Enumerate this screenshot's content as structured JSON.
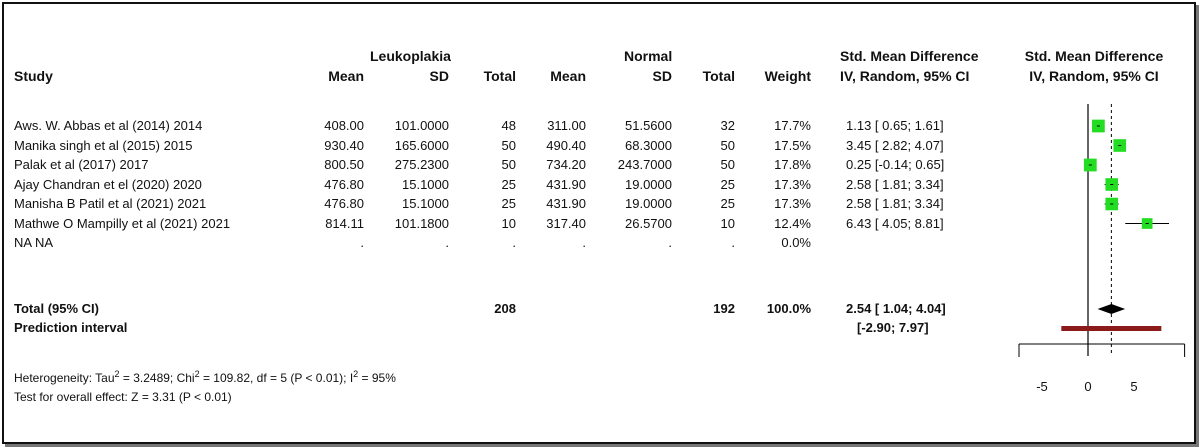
{
  "header": {
    "study": "Study",
    "group1": "Leukoplakia",
    "group2": "Normal",
    "mean": "Mean",
    "sd": "SD",
    "total": "Total",
    "weight": "Weight",
    "effect_line1": "Std. Mean Difference",
    "effect_line2": "IV, Random, 95% CI",
    "plot_line1": "Std. Mean Difference",
    "plot_line2": "IV, Random, 95% CI"
  },
  "rows": [
    {
      "study": "Aws. W. Abbas et al (2014) 2014",
      "m1": "408.00",
      "sd1": "101.0000",
      "n1": "48",
      "m2": "311.00",
      "sd2": "51.5600",
      "n2": "32",
      "weight": "17.7%",
      "ci": "1.13 [ 0.65; 1.61]"
    },
    {
      "study": "Manika singh et al (2015) 2015",
      "m1": "930.40",
      "sd1": "165.6000",
      "n1": "50",
      "m2": "490.40",
      "sd2": "68.3000",
      "n2": "50",
      "weight": "17.5%",
      "ci": "3.45 [ 2.82; 4.07]"
    },
    {
      "study": "Palak et al (2017) 2017",
      "m1": "800.50",
      "sd1": "275.2300",
      "n1": "50",
      "m2": "734.20",
      "sd2": "243.7000",
      "n2": "50",
      "weight": "17.8%",
      "ci": "0.25 [-0.14; 0.65]"
    },
    {
      "study": "Ajay Chandran et el (2020) 2020",
      "m1": "476.80",
      "sd1": "15.1000",
      "n1": "25",
      "m2": "431.90",
      "sd2": "19.0000",
      "n2": "25",
      "weight": "17.3%",
      "ci": "2.58 [ 1.81; 3.34]"
    },
    {
      "study": "Manisha B Patil et al (2021) 2021",
      "m1": "476.80",
      "sd1": "15.1000",
      "n1": "25",
      "m2": "431.90",
      "sd2": "19.0000",
      "n2": "25",
      "weight": "17.3%",
      "ci": "2.58 [ 1.81; 3.34]"
    },
    {
      "study": "Mathwe O Mampilly et al (2021) 2021",
      "m1": "814.11",
      "sd1": "101.1800",
      "n1": "10",
      "m2": "317.40",
      "sd2": "26.5700",
      "n2": "10",
      "weight": "12.4%",
      "ci": "6.43 [ 4.05; 8.81]"
    },
    {
      "study": "NA NA",
      "m1": ".",
      "sd1": ".",
      "n1": ".",
      "m2": ".",
      "sd2": ".",
      "n2": ".",
      "weight": "0.0%",
      "ci": ""
    }
  ],
  "total": {
    "label": "Total (95% CI)",
    "n1": "208",
    "n2": "192",
    "weight": "100.0%",
    "ci": "2.54 [ 1.04; 4.04]"
  },
  "prediction": {
    "label": "Prediction interval",
    "ci": "[-2.90; 7.97]"
  },
  "footer": {
    "het_a": "Heterogeneity: Tau",
    "het_b": " = 3.2489; Chi",
    "het_c": " = 109.82, df = 5 (P < 0.01); I",
    "het_d": " = 95%",
    "sup2": "2",
    "overall": "Test for overall effect: Z = 3.31 (P < 0.01)"
  },
  "chart_data": {
    "type": "forest",
    "x_ticks": [
      -5,
      0,
      5
    ],
    "xlim": [
      -7.5,
      10.5
    ],
    "reference_line": 0,
    "pooled_line": 2.54,
    "studies": [
      {
        "est": 1.13,
        "lo": 0.65,
        "hi": 1.61,
        "weight": 17.7
      },
      {
        "est": 3.45,
        "lo": 2.82,
        "hi": 4.07,
        "weight": 17.5
      },
      {
        "est": 0.25,
        "lo": -0.14,
        "hi": 0.65,
        "weight": 17.8
      },
      {
        "est": 2.58,
        "lo": 1.81,
        "hi": 3.34,
        "weight": 17.3
      },
      {
        "est": 2.58,
        "lo": 1.81,
        "hi": 3.34,
        "weight": 17.3
      },
      {
        "est": 6.43,
        "lo": 4.05,
        "hi": 8.81,
        "weight": 12.4
      }
    ],
    "pooled": {
      "est": 2.54,
      "lo": 1.04,
      "hi": 4.04
    },
    "prediction_interval": {
      "lo": -2.9,
      "hi": 7.97
    },
    "colors": {
      "square": "#22dd22",
      "diamond": "#000000",
      "prediction": "#8b1a1a"
    }
  }
}
